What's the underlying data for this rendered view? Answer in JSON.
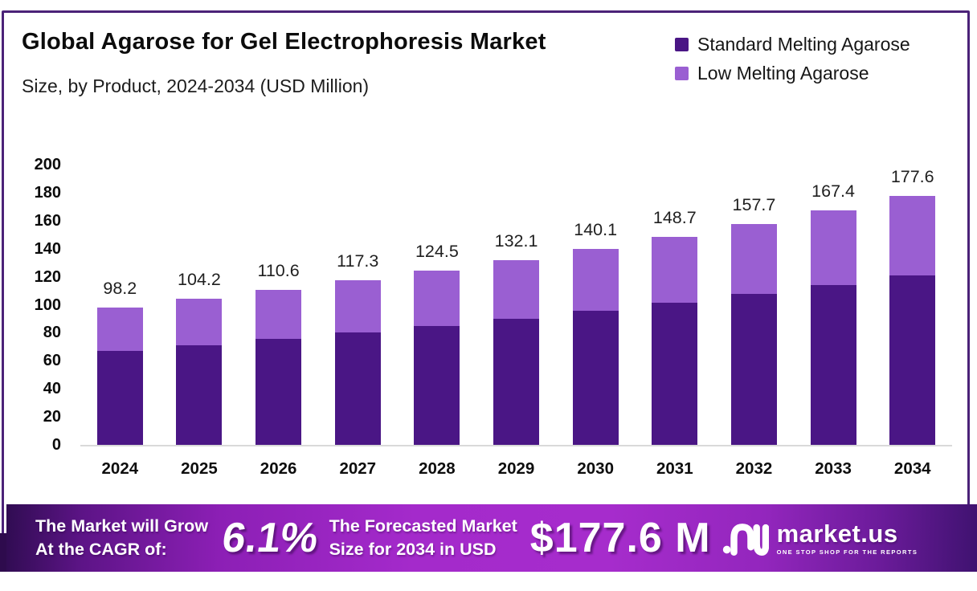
{
  "chart_data": {
    "type": "bar",
    "stacked": true,
    "title": "Global Agarose for Gel Electrophoresis Market",
    "subtitle": "Size, by Product, 2024-2034 (USD Million)",
    "categories": [
      "2024",
      "2025",
      "2026",
      "2027",
      "2028",
      "2029",
      "2030",
      "2031",
      "2032",
      "2033",
      "2034"
    ],
    "series": [
      {
        "name": "Standard Melting Agarose",
        "color": "#4a1685",
        "values": [
          67.0,
          71.1,
          75.4,
          80.0,
          84.9,
          90.1,
          95.6,
          101.4,
          107.6,
          114.2,
          121.2
        ]
      },
      {
        "name": "Low Melting Agarose",
        "color": "#9a5fd2",
        "values": [
          31.2,
          33.1,
          35.2,
          37.3,
          39.6,
          42.0,
          44.5,
          47.3,
          50.1,
          53.2,
          56.4
        ]
      }
    ],
    "totals": [
      98.2,
      104.2,
      110.6,
      117.3,
      124.5,
      132.1,
      140.1,
      148.7,
      157.7,
      167.4,
      177.6
    ],
    "total_labels": [
      "98.2",
      "104.2",
      "110.6",
      "117.3",
      "124.5",
      "132.1",
      "140.1",
      "148.7",
      "157.7",
      "167.4",
      "177.6"
    ],
    "y_ticks": [
      0,
      20,
      40,
      60,
      80,
      100,
      120,
      140,
      160,
      180,
      200
    ],
    "ylim": [
      0,
      200
    ],
    "grid": false,
    "legend_position": "top-right",
    "xlabel": "",
    "ylabel": ""
  },
  "banner": {
    "cagr_label_line1": "The Market will Grow",
    "cagr_label_line2": "At the CAGR of:",
    "cagr_value": "6.1%",
    "forecast_label_line1": "The Forecasted Market",
    "forecast_label_line2": "Size for 2034 in USD",
    "forecast_value": "$177.6 M",
    "brand_name": "market.us",
    "brand_tagline": "ONE STOP SHOP FOR THE REPORTS"
  },
  "colors": {
    "frame_border": "#4b2278",
    "axis_line": "#d9d9d9",
    "banner_dark": "#300c52",
    "banner_bright": "#a62ccc",
    "standard_melting": "#4a1685",
    "low_melting": "#9a5fd2"
  }
}
